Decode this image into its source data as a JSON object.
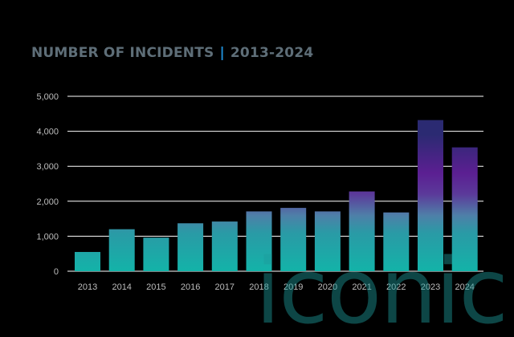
{
  "chart_data": {
    "type": "bar",
    "title": "NUMBER OF INCIDENTS",
    "subtitle": "2013-2024",
    "xlabel": "",
    "ylabel": "",
    "categories": [
      "2013",
      "2014",
      "2015",
      "2016",
      "2017",
      "2018",
      "2019",
      "2020",
      "2021",
      "2022",
      "2023",
      "2024"
    ],
    "values": [
      550,
      1200,
      960,
      1370,
      1420,
      1710,
      1810,
      1710,
      2280,
      1680,
      4320,
      3540
    ],
    "ylim": [
      0,
      5000
    ],
    "yticks": [
      "0",
      "1,000",
      "2,000",
      "3,000",
      "4,000",
      "5,000"
    ],
    "grid": true,
    "legend": "none",
    "colors": {
      "low": "#13b3a8",
      "mid": "#4f7fa8",
      "high": "#5b1f92",
      "top": "#2b2a72"
    }
  },
  "watermark": {
    "text": "iconic"
  }
}
